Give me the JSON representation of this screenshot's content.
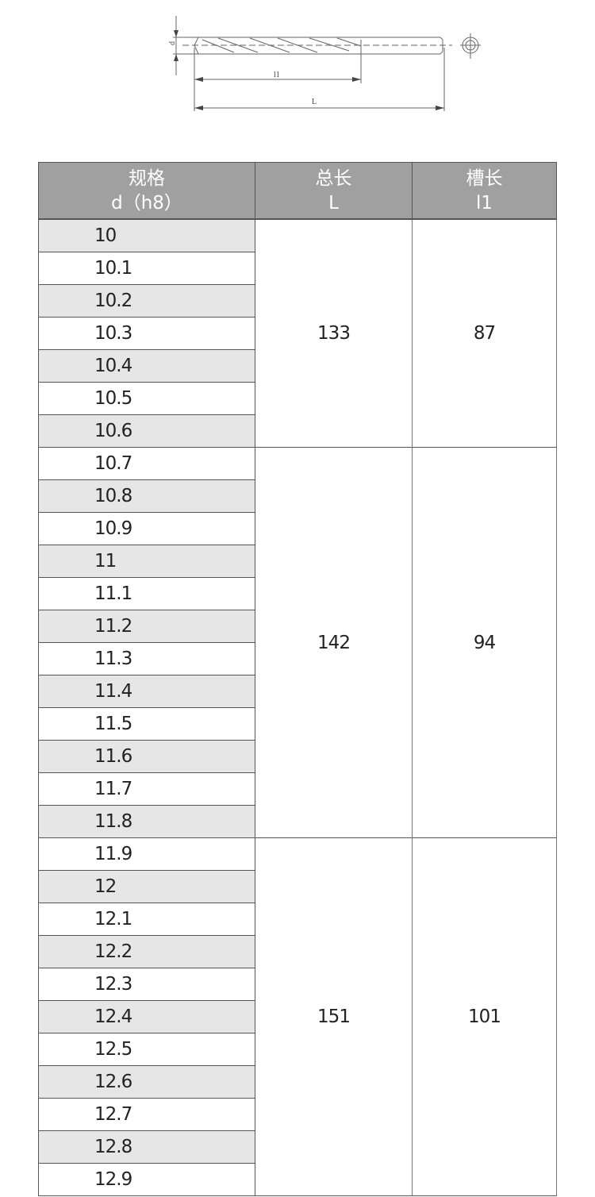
{
  "drawing": {
    "labels": {
      "diameter": "d",
      "flute_length": "l1",
      "total_length": "L"
    }
  },
  "table": {
    "headers": [
      {
        "line1": "规格",
        "line2": "d（h8）"
      },
      {
        "line1": "总长",
        "line2": "L"
      },
      {
        "line1": "槽长",
        "line2": "l1"
      }
    ],
    "groups": [
      {
        "total_length": "133",
        "flute_length": "87",
        "diameters": [
          "10",
          "10.1",
          "10.2",
          "10.3",
          "10.4",
          "10.5",
          "10.6"
        ]
      },
      {
        "total_length": "142",
        "flute_length": "94",
        "diameters": [
          "10.7",
          "10.8",
          "10.9",
          "11",
          "11.1",
          "11.2",
          "11.3",
          "11.4",
          "11.5",
          "11.6",
          "11.7",
          "11.8"
        ]
      },
      {
        "total_length": "151",
        "flute_length": "101",
        "diameters": [
          "11.9",
          "12",
          "12.1",
          "12.2",
          "12.3",
          "12.4",
          "12.5",
          "12.6",
          "12.7",
          "12.8",
          "12.9"
        ]
      }
    ]
  },
  "colors": {
    "header_bg": "#a0a0a0",
    "row_alt_bg": "#e6e6e6"
  }
}
